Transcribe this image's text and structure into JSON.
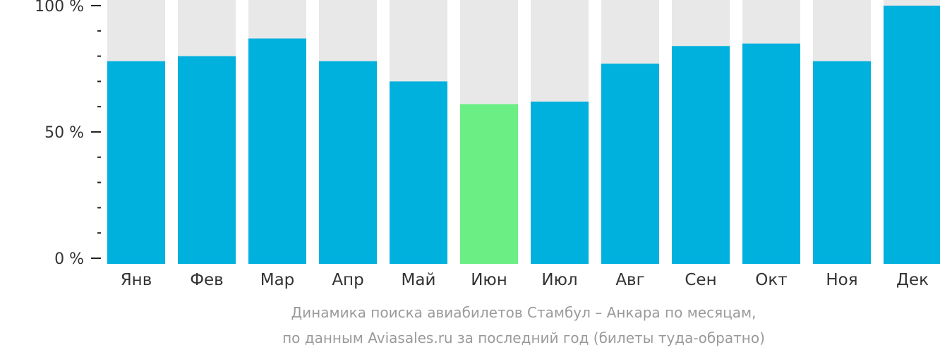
{
  "chart_data": {
    "type": "bar",
    "categories": [
      "Янв",
      "Фев",
      "Мар",
      "Апр",
      "Май",
      "Июн",
      "Июл",
      "Авг",
      "Сен",
      "Окт",
      "Ноя",
      "Дек"
    ],
    "values": [
      78,
      80,
      87,
      78,
      70,
      61,
      62,
      77,
      84,
      85,
      78,
      100
    ],
    "highlight_index": 5,
    "ylim": [
      0,
      100
    ],
    "yticks": [
      {
        "value": 100,
        "label": "100 %"
      },
      {
        "value": 50,
        "label": "50 %"
      },
      {
        "value": 0,
        "label": "0 %"
      }
    ],
    "minor_tick_step": 10,
    "grid": false,
    "colors": {
      "bar": "#00b0dd",
      "highlight": "#6bef85",
      "track": "#e8e8e8",
      "tick_label": "#333333",
      "category_label": "#333333",
      "caption": "#9a9a9a"
    },
    "caption": [
      "Динамика поиска авиабилетов Стамбул – Анкара по месяцам,",
      "по данным Aviasales.ru за последний год (билеты туда-обратно)"
    ]
  }
}
